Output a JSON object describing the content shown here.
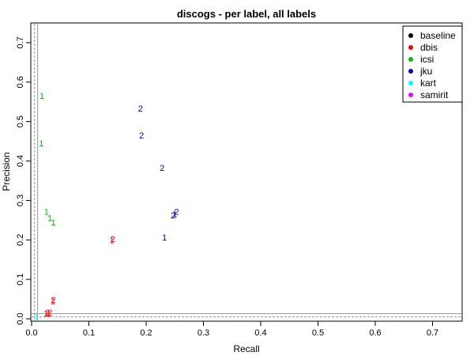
{
  "chart_data": {
    "type": "scatter",
    "title": "discogs - per label, all labels",
    "xlabel": "Recall",
    "ylabel": "Precision",
    "xlim": [
      0,
      0.75
    ],
    "ylim": [
      0,
      0.75
    ],
    "x_ticks": [
      0.0,
      0.1,
      0.2,
      0.3,
      0.4,
      0.5,
      0.6,
      0.7
    ],
    "y_ticks": [
      0.0,
      0.1,
      0.2,
      0.3,
      0.4,
      0.5,
      0.6,
      0.7
    ],
    "x_tick_labels": [
      "0.0",
      "0.1",
      "0.2",
      "0.3",
      "0.4",
      "0.5",
      "0.6",
      "0.7"
    ],
    "y_tick_labels": [
      "0.0",
      "0.1",
      "0.2",
      "0.3",
      "0.4",
      "0.5",
      "0.6",
      "0.7"
    ],
    "grid": false,
    "reference_lines": {
      "x": 0.005,
      "y": 0.005,
      "color": "#9a9a9a",
      "style": "dashed"
    },
    "legend": {
      "placement": "top-right",
      "symbol": "filled-dot"
    },
    "series": [
      {
        "name": "baseline",
        "color": "#000000",
        "points": []
      },
      {
        "name": "dbis",
        "color": "#ff0000",
        "points": [
          {
            "x": 0.14,
            "y": 0.2,
            "label": "1"
          },
          {
            "x": 0.142,
            "y": 0.203,
            "label": "2"
          },
          {
            "x": 0.037,
            "y": 0.045,
            "label": "1"
          },
          {
            "x": 0.038,
            "y": 0.048,
            "label": "2"
          },
          {
            "x": 0.025,
            "y": 0.014,
            "label": "1"
          },
          {
            "x": 0.028,
            "y": 0.016,
            "label": "2"
          },
          {
            "x": 0.03,
            "y": 0.013,
            "label": "1"
          },
          {
            "x": 0.032,
            "y": 0.016,
            "label": "2"
          }
        ]
      },
      {
        "name": "icsi",
        "color": "#00bf00",
        "points": [
          {
            "x": 0.018,
            "y": 0.565,
            "label": "1"
          },
          {
            "x": 0.017,
            "y": 0.445,
            "label": "1"
          },
          {
            "x": 0.026,
            "y": 0.272,
            "label": "1"
          },
          {
            "x": 0.032,
            "y": 0.256,
            "label": "1"
          },
          {
            "x": 0.038,
            "y": 0.245,
            "label": "1"
          }
        ]
      },
      {
        "name": "jku",
        "color": "#0000cd",
        "points": [
          {
            "x": 0.19,
            "y": 0.533,
            "label": "2"
          },
          {
            "x": 0.192,
            "y": 0.465,
            "label": "2"
          },
          {
            "x": 0.228,
            "y": 0.383,
            "label": "2"
          },
          {
            "x": 0.232,
            "y": 0.207,
            "label": "1"
          },
          {
            "x": 0.247,
            "y": 0.263,
            "label": "2"
          },
          {
            "x": 0.25,
            "y": 0.266,
            "label": "1"
          },
          {
            "x": 0.253,
            "y": 0.272,
            "label": "2"
          }
        ]
      },
      {
        "name": "kart",
        "color": "#00ffff",
        "points": [
          {
            "x": 0.008,
            "y": 0.005,
            "label": "1"
          }
        ]
      },
      {
        "name": "samirit",
        "color": "#ff00ff",
        "points": []
      }
    ]
  }
}
